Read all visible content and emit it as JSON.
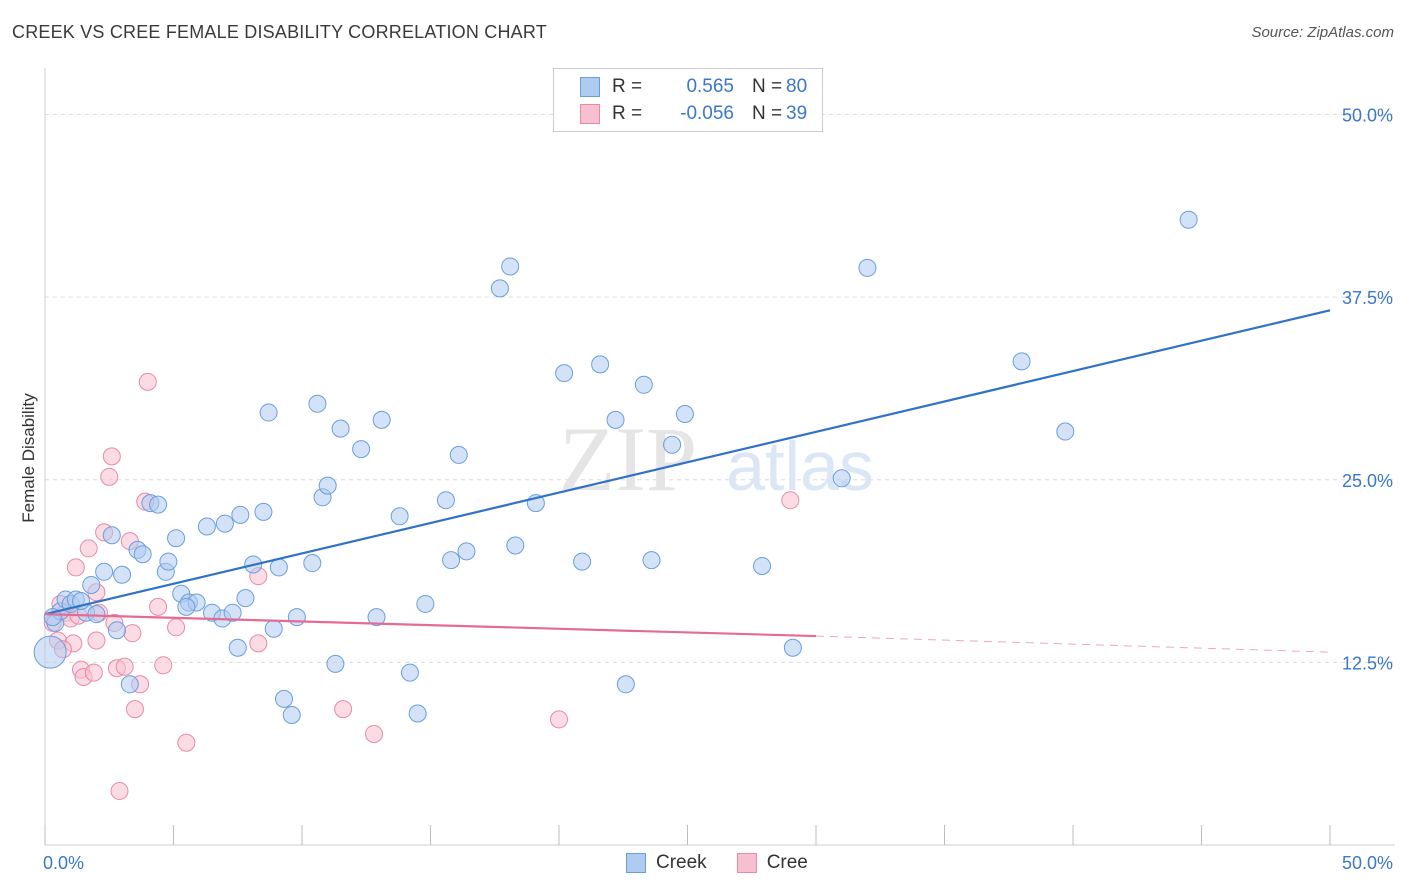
{
  "header": {
    "title": "CREEK VS CREE FEMALE DISABILITY CORRELATION CHART",
    "source": "Source: ZipAtlas.com"
  },
  "legend": {
    "rows": [
      {
        "r_label": "R =",
        "r_value": "0.565",
        "n_label": "N =",
        "n_value": "80"
      },
      {
        "r_label": "R =",
        "r_value": "-0.056",
        "n_label": "N =",
        "n_value": "39"
      }
    ]
  },
  "bottom_legend": {
    "creek": "Creek",
    "cree": "Cree"
  },
  "watermark": {
    "zip": "ZIP",
    "atlas": "atlas"
  },
  "colors": {
    "creek_fill": "#aecbf0",
    "creek_stroke": "#6a9fdc",
    "creek_line": "#2f72c8",
    "cree_fill": "#f7c0d0",
    "cree_stroke": "#e88aa8",
    "cree_line": "#e46b93",
    "axis_label": "#3a78c9",
    "grid": "#dddddd"
  },
  "chart_data": {
    "type": "scatter",
    "title": "CREEK VS CREE FEMALE DISABILITY CORRELATION CHART",
    "xlabel": "",
    "ylabel": "Female Disability",
    "xlim": [
      0,
      50
    ],
    "ylim": [
      0,
      52.5
    ],
    "x_tick_labels": [
      "0.0%",
      "50.0%"
    ],
    "y_ticks": [
      12.5,
      25.0,
      37.5,
      50.0
    ],
    "y_tick_labels": [
      "12.5%",
      "25.0%",
      "37.5%",
      "50.0%"
    ],
    "grid": true,
    "legend_position": "top-center",
    "series": [
      {
        "name": "Creek",
        "R": 0.565,
        "N": 80,
        "trend": {
          "x": [
            0,
            50
          ],
          "y": [
            15.8,
            36.6
          ],
          "dashed_from": null
        },
        "points": [
          [
            0.2,
            13.2
          ],
          [
            0.4,
            15.2
          ],
          [
            0.6,
            16.0
          ],
          [
            0.8,
            16.8
          ],
          [
            1.0,
            16.5
          ],
          [
            1.2,
            16.8
          ],
          [
            1.6,
            15.9
          ],
          [
            1.8,
            17.8
          ],
          [
            2.3,
            18.7
          ],
          [
            2.6,
            21.2
          ],
          [
            2.8,
            14.7
          ],
          [
            3.0,
            18.5
          ],
          [
            3.3,
            11.0
          ],
          [
            3.6,
            20.2
          ],
          [
            3.8,
            19.9
          ],
          [
            4.1,
            23.4
          ],
          [
            4.4,
            23.3
          ],
          [
            4.7,
            18.7
          ],
          [
            4.8,
            19.4
          ],
          [
            5.1,
            21.0
          ],
          [
            5.3,
            17.2
          ],
          [
            5.6,
            16.6
          ],
          [
            5.9,
            16.6
          ],
          [
            6.3,
            21.8
          ],
          [
            6.5,
            15.9
          ],
          [
            6.9,
            15.5
          ],
          [
            7.0,
            22.0
          ],
          [
            7.3,
            15.9
          ],
          [
            7.5,
            13.5
          ],
          [
            7.6,
            22.6
          ],
          [
            7.8,
            16.9
          ],
          [
            8.1,
            19.2
          ],
          [
            8.5,
            22.8
          ],
          [
            8.7,
            29.6
          ],
          [
            8.9,
            14.8
          ],
          [
            9.1,
            19.0
          ],
          [
            9.3,
            10.0
          ],
          [
            9.6,
            8.9
          ],
          [
            9.8,
            15.6
          ],
          [
            10.4,
            19.3
          ],
          [
            10.6,
            30.2
          ],
          [
            10.8,
            23.8
          ],
          [
            11.0,
            24.6
          ],
          [
            11.3,
            12.4
          ],
          [
            11.5,
            28.5
          ],
          [
            12.3,
            27.1
          ],
          [
            12.9,
            15.6
          ],
          [
            13.1,
            29.1
          ],
          [
            13.8,
            22.5
          ],
          [
            14.2,
            11.8
          ],
          [
            14.5,
            9.0
          ],
          [
            14.8,
            16.5
          ],
          [
            15.6,
            23.6
          ],
          [
            15.8,
            19.5
          ],
          [
            16.1,
            26.7
          ],
          [
            16.4,
            20.1
          ],
          [
            17.7,
            38.1
          ],
          [
            18.1,
            39.6
          ],
          [
            18.3,
            20.5
          ],
          [
            19.1,
            23.4
          ],
          [
            20.2,
            32.3
          ],
          [
            20.9,
            19.4
          ],
          [
            21.6,
            32.9
          ],
          [
            22.2,
            29.1
          ],
          [
            22.6,
            11.0
          ],
          [
            23.3,
            31.5
          ],
          [
            23.6,
            19.5
          ],
          [
            24.4,
            27.4
          ],
          [
            24.9,
            29.5
          ],
          [
            27.9,
            19.1
          ],
          [
            29.1,
            13.5
          ],
          [
            31.0,
            25.1
          ],
          [
            32.0,
            39.5
          ],
          [
            38.0,
            33.1
          ],
          [
            39.7,
            28.3
          ],
          [
            44.5,
            42.8
          ],
          [
            1.4,
            16.7
          ],
          [
            2.0,
            15.8
          ],
          [
            5.5,
            16.3
          ],
          [
            0.3,
            15.6
          ]
        ],
        "sizes_note": "one large point near x=0.2, y=13.2"
      },
      {
        "name": "Cree",
        "R": -0.056,
        "N": 39,
        "trend": {
          "x": [
            0,
            30
          ],
          "y": [
            15.8,
            14.3
          ],
          "dashed_to": [
            50,
            13.2
          ]
        },
        "points": [
          [
            0.3,
            15.2
          ],
          [
            0.5,
            14.0
          ],
          [
            0.6,
            16.5
          ],
          [
            0.8,
            15.9
          ],
          [
            1.0,
            15.5
          ],
          [
            1.1,
            13.8
          ],
          [
            1.2,
            19.0
          ],
          [
            1.3,
            15.7
          ],
          [
            1.4,
            12.0
          ],
          [
            1.5,
            11.5
          ],
          [
            1.7,
            20.3
          ],
          [
            2.0,
            14.0
          ],
          [
            2.0,
            17.3
          ],
          [
            2.1,
            15.9
          ],
          [
            2.3,
            21.4
          ],
          [
            2.5,
            25.2
          ],
          [
            2.6,
            26.6
          ],
          [
            2.7,
            15.2
          ],
          [
            2.8,
            12.1
          ],
          [
            2.9,
            3.7
          ],
          [
            3.1,
            12.2
          ],
          [
            3.3,
            20.8
          ],
          [
            3.4,
            14.5
          ],
          [
            3.5,
            9.3
          ],
          [
            3.7,
            11.0
          ],
          [
            3.9,
            23.5
          ],
          [
            4.0,
            31.7
          ],
          [
            4.4,
            16.3
          ],
          [
            4.6,
            12.3
          ],
          [
            5.1,
            14.9
          ],
          [
            5.5,
            7.0
          ],
          [
            8.3,
            18.4
          ],
          [
            8.3,
            13.8
          ],
          [
            11.6,
            9.3
          ],
          [
            12.8,
            7.6
          ],
          [
            20.0,
            8.6
          ],
          [
            29.0,
            23.6
          ],
          [
            1.9,
            11.8
          ],
          [
            0.7,
            13.4
          ]
        ]
      }
    ]
  }
}
